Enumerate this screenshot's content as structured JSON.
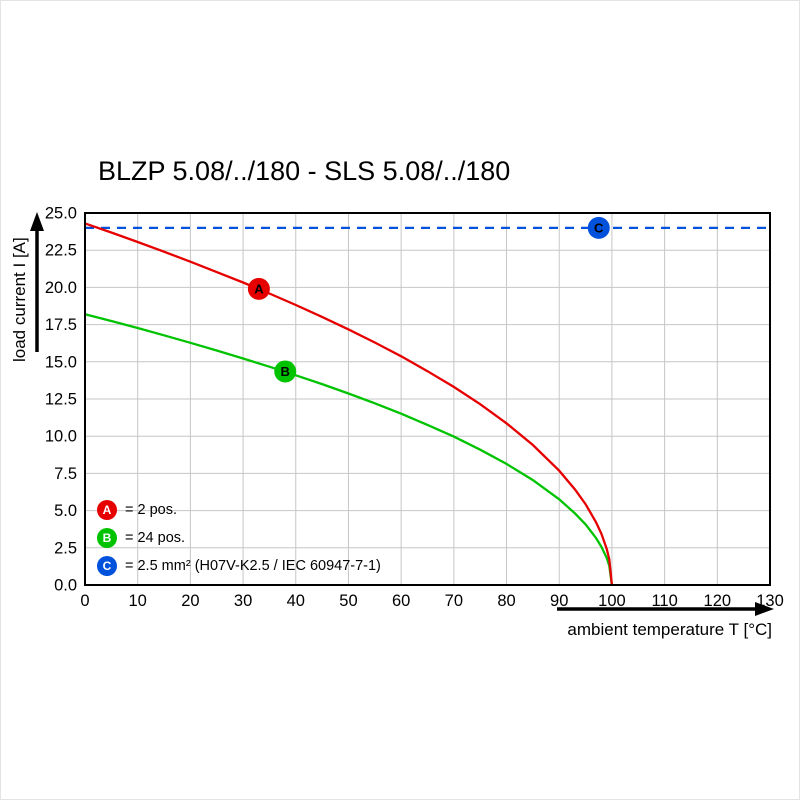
{
  "chart_data": {
    "type": "line",
    "title": "BLZP 5.08/../180 - SLS 5.08/../180",
    "xlabel": "ambient temperature T [°C]",
    "ylabel": "load current I [A]",
    "xlim": [
      0,
      130
    ],
    "ylim": [
      0,
      25
    ],
    "xticks": [
      0,
      10,
      20,
      30,
      40,
      50,
      60,
      70,
      80,
      90,
      100,
      110,
      120,
      130
    ],
    "yticks": [
      0,
      2.5,
      5,
      7.5,
      10,
      12.5,
      15,
      17.5,
      20,
      22.5,
      25
    ],
    "grid": true,
    "grid_color": "#c6c6c6",
    "axis_color": "#000000",
    "legend_position": "bottom-left-inside",
    "series": [
      {
        "key": "C",
        "name": "2.5 mm² (H07V-K2.5 / IEC 60947-7-1)",
        "color": "#0051dc",
        "dash": "9,7",
        "marker": [
          97.5,
          24
        ],
        "points": [
          [
            0,
            24
          ],
          [
            130,
            24
          ]
        ]
      },
      {
        "key": "B",
        "name": "24 pos.",
        "color": "#00c300",
        "dash": null,
        "marker": [
          38,
          14.35
        ],
        "points": [
          [
            0,
            18.2
          ],
          [
            5,
            17.74
          ],
          [
            10,
            17.27
          ],
          [
            15,
            16.78
          ],
          [
            20,
            16.28
          ],
          [
            25,
            15.76
          ],
          [
            30,
            15.22
          ],
          [
            35,
            14.67
          ],
          [
            40,
            14.09
          ],
          [
            45,
            13.5
          ],
          [
            50,
            12.87
          ],
          [
            55,
            12.21
          ],
          [
            60,
            11.51
          ],
          [
            65,
            10.76
          ],
          [
            70,
            9.97
          ],
          [
            75,
            9.09
          ],
          [
            80,
            8.14
          ],
          [
            85,
            7.05
          ],
          [
            90,
            5.76
          ],
          [
            93,
            4.81
          ],
          [
            95,
            4.07
          ],
          [
            97,
            3.15
          ],
          [
            98,
            2.57
          ],
          [
            99,
            1.82
          ],
          [
            99.5,
            1.29
          ],
          [
            100,
            0
          ]
        ]
      },
      {
        "key": "A",
        "name": "2 pos.",
        "color": "#e60000",
        "dash": null,
        "marker": [
          33,
          19.9
        ],
        "points": [
          [
            0,
            24.3
          ],
          [
            5,
            23.69
          ],
          [
            10,
            23.05
          ],
          [
            15,
            22.4
          ],
          [
            20,
            21.73
          ],
          [
            25,
            21.03
          ],
          [
            30,
            20.33
          ],
          [
            35,
            19.59
          ],
          [
            40,
            18.82
          ],
          [
            45,
            18.02
          ],
          [
            50,
            17.18
          ],
          [
            55,
            16.3
          ],
          [
            60,
            15.37
          ],
          [
            65,
            14.37
          ],
          [
            70,
            13.31
          ],
          [
            75,
            12.15
          ],
          [
            80,
            10.87
          ],
          [
            85,
            9.41
          ],
          [
            90,
            7.68
          ],
          [
            93,
            6.42
          ],
          [
            95,
            5.43
          ],
          [
            97,
            4.21
          ],
          [
            98,
            3.44
          ],
          [
            99,
            2.43
          ],
          [
            99.5,
            1.72
          ],
          [
            100,
            0
          ]
        ]
      }
    ],
    "legend": [
      {
        "key": "A",
        "color": "#e60000",
        "label": "= 2 pos."
      },
      {
        "key": "B",
        "color": "#00c300",
        "label": "= 24 pos."
      },
      {
        "key": "C",
        "color": "#0051dc",
        "label": "= 2.5 mm² (H07V-K2.5 / IEC 60947-7-1)"
      }
    ]
  }
}
